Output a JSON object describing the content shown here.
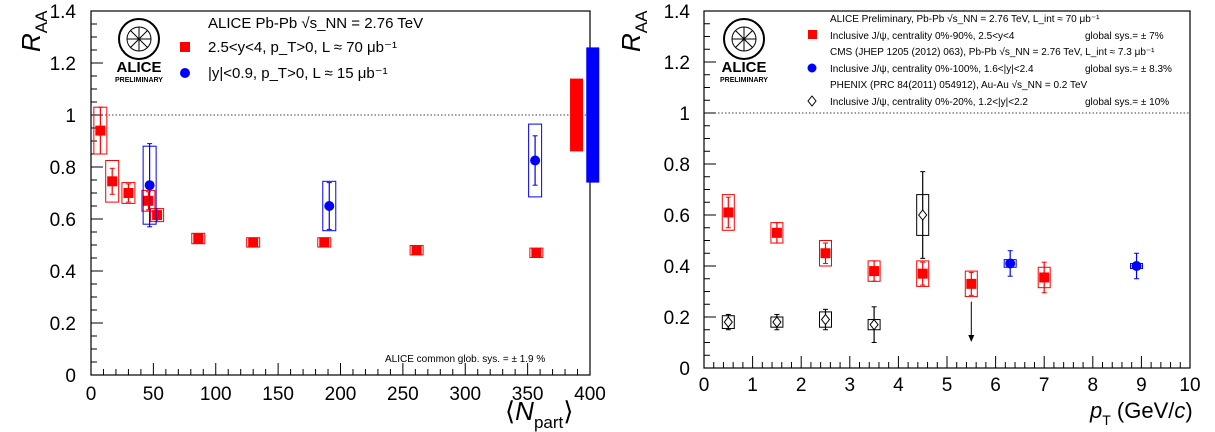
{
  "chart_data": [
    {
      "type": "scatter",
      "title": "",
      "xlabel": "⟨N_part⟩",
      "ylabel": "R_AA",
      "xlim": [
        0,
        400
      ],
      "ylim": [
        0,
        1.4
      ],
      "x_ticks": [
        "0",
        "50",
        "100",
        "150",
        "200",
        "250",
        "300",
        "350",
        "400"
      ],
      "y_ticks": [
        "0",
        "0.2",
        "0.4",
        "0.6",
        "0.8",
        "1",
        "1.2",
        "1.4"
      ],
      "reference_line_y": 1,
      "logo": {
        "name": "ALICE",
        "subtext": "PRELIMINARY"
      },
      "legend_header": "ALICE Pb-Pb √s_NN = 2.76 TeV",
      "note": "ALICE common glob. sys. = ± 1.9 %",
      "series": [
        {
          "name": "2.5<y<4, p_T>0, L ≈ 70 μb⁻¹",
          "color": "#ff0000",
          "marker": "square",
          "x": [
            7.5,
            17,
            30,
            46,
            53,
            86,
            130,
            187,
            261,
            357
          ],
          "y": [
            0.94,
            0.745,
            0.7,
            0.67,
            0.615,
            0.525,
            0.51,
            0.51,
            0.48,
            0.47
          ],
          "stat_err": [
            0.09,
            0.05,
            0.035,
            0.035,
            0.025,
            0.018,
            0.012,
            0.012,
            0.012,
            0.012
          ],
          "sys_err": [
            0.09,
            0.08,
            0.04,
            0.04,
            0.025,
            0.02,
            0.018,
            0.018,
            0.018,
            0.018
          ]
        },
        {
          "name": "|y|<0.9, p_T>0, L ≈ 15 μb⁻¹",
          "color": "#0000ff",
          "marker": "circle",
          "x": [
            47,
            191,
            356
          ],
          "y": [
            0.73,
            0.65,
            0.825
          ],
          "stat_err": [
            0.16,
            0.09,
            0.095
          ],
          "sys_err": [
            0.15,
            0.095,
            0.14
          ]
        }
      ],
      "global_sys_boxes": [
        {
          "color": "#ff0000",
          "low": 0.86,
          "high": 1.14
        },
        {
          "color": "#0000ff",
          "low": 0.74,
          "high": 1.26
        }
      ]
    },
    {
      "type": "scatter",
      "title": "",
      "xlabel": "p_T (GeV/c)",
      "ylabel": "R_AA",
      "xlim": [
        0,
        10
      ],
      "ylim": [
        0,
        1.4
      ],
      "x_ticks": [
        "0",
        "1",
        "2",
        "3",
        "4",
        "5",
        "6",
        "7",
        "8",
        "9",
        "10"
      ],
      "y_ticks": [
        "0",
        "0.2",
        "0.4",
        "0.6",
        "0.8",
        "1",
        "1.2",
        "1.4"
      ],
      "reference_line_y": 1,
      "logo": {
        "name": "ALICE",
        "subtext": "PRELIMINARY"
      },
      "legend_lines": [
        "ALICE Preliminary, Pb-Pb √s_NN = 2.76 TeV, L_int ≈ 70 μb⁻¹",
        "CMS (JHEP 1205 (2012) 063), Pb-Pb √s_NN = 2.76 TeV, L_int ≈ 7.3 μb⁻¹",
        "PHENIX (PRC 84(2011) 054912), Au-Au √s_NN = 0.2 TeV"
      ],
      "series": [
        {
          "name": "Inclusive J/ψ, centrality 0%-90%, 2.5<y<4",
          "global_sys": "global sys.= ± 7%",
          "color": "#ff0000",
          "marker": "square",
          "x": [
            0.5,
            1.5,
            2.5,
            3.5,
            4.5,
            5.5,
            7.0
          ],
          "y": [
            0.61,
            0.53,
            0.45,
            0.38,
            0.37,
            0.33,
            0.355
          ],
          "stat_err": [
            0.06,
            0.04,
            0.04,
            0.04,
            0.045,
            0.045,
            0.06
          ],
          "sys_err": [
            0.07,
            0.04,
            0.05,
            0.04,
            0.05,
            0.05,
            0.04
          ]
        },
        {
          "name": "Inclusive J/ψ, centrality 0%-100%, 1.6<|y|<2.4",
          "global_sys": "global sys.= ± 8.3%",
          "color": "#0000ff",
          "marker": "circle",
          "x": [
            6.3,
            8.9
          ],
          "y": [
            0.41,
            0.4
          ],
          "stat_err": [
            0.05,
            0.05
          ],
          "sys_err": [
            0.015,
            0.01
          ]
        },
        {
          "name": "Inclusive J/ψ, centrality 0%-20%, 1.2<|y|<2.2",
          "global_sys": "global sys.= ± 10%",
          "color": "#000000",
          "marker": "open-diamond",
          "x": [
            0.5,
            1.5,
            2.5,
            3.5,
            4.5
          ],
          "y": [
            0.18,
            0.18,
            0.19,
            0.17,
            0.6
          ],
          "stat_err": [
            0.03,
            0.03,
            0.04,
            0.07,
            0.17
          ],
          "sys_err": [
            0.025,
            0.02,
            0.03,
            0.02,
            0.08
          ]
        }
      ],
      "upper_limit": {
        "x": 5.5,
        "from": 0.26,
        "to": 0.11
      }
    }
  ]
}
